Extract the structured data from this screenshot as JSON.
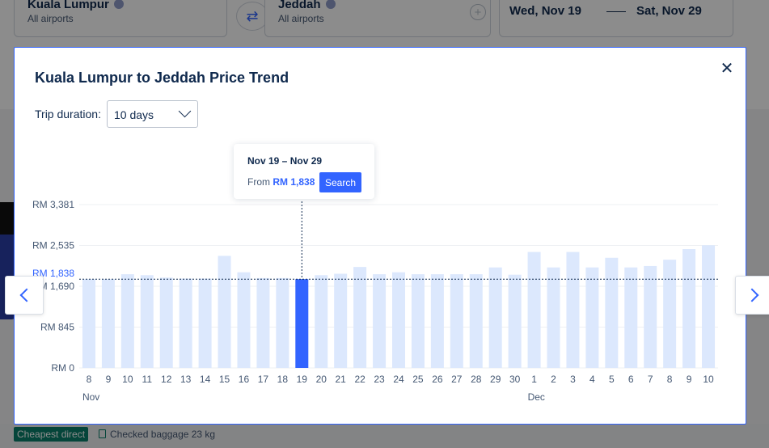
{
  "background": {
    "origin_city": "Kuala Lumpur",
    "origin_sub": "All airports",
    "dest_city": "Jeddah",
    "dest_sub": "All airports",
    "depart_date": "Wed, Nov 19",
    "return_date": "Sat, Nov 29",
    "badge": "Cheapest direct",
    "baggage": "Checked baggage 23 kg"
  },
  "modal": {
    "title": "Kuala Lumpur to Jeddah Price Trend",
    "close_icon": "close-icon",
    "duration_label": "Trip duration:",
    "duration_value": "10 days"
  },
  "tooltip": {
    "dates": "Nov 19 – Nov 29",
    "from_label": "From",
    "price": "RM 1,838",
    "search_label": "Search"
  },
  "colors": {
    "accent": "#3264ff",
    "bar": "#dce8fd",
    "bar_selected": "#3264ff",
    "text": "#0f294d",
    "muted": "#455873"
  },
  "chart_data": {
    "type": "bar",
    "ylim": [
      0,
      3381
    ],
    "y_ticks": [
      {
        "value": 0,
        "label": "RM 0"
      },
      {
        "value": 845,
        "label": "RM 845"
      },
      {
        "value": 1690,
        "label": "RM 1,690"
      },
      {
        "value": 2535,
        "label": "RM 2,535"
      },
      {
        "value": 3381,
        "label": "RM 3,381"
      }
    ],
    "reference_line": {
      "value": 1838,
      "label": "RM 1,838"
    },
    "selected_category": "19",
    "categories": [
      "8",
      "9",
      "10",
      "11",
      "12",
      "13",
      "14",
      "15",
      "16",
      "17",
      "18",
      "19",
      "20",
      "21",
      "22",
      "23",
      "24",
      "25",
      "26",
      "27",
      "28",
      "29",
      "30",
      "1",
      "2",
      "3",
      "4",
      "5",
      "6",
      "7",
      "8",
      "9",
      "10"
    ],
    "month_labels": [
      {
        "label": "Nov",
        "category_index": 0
      },
      {
        "label": "Dec",
        "category_index": 23
      }
    ],
    "values": [
      1840,
      1840,
      1940,
      1920,
      1870,
      1850,
      1850,
      2320,
      1980,
      1860,
      1860,
      1838,
      1920,
      1950,
      2090,
      1940,
      1980,
      1940,
      1940,
      1940,
      1940,
      2080,
      1930,
      2400,
      2080,
      2400,
      2080,
      2280,
      2080,
      2110,
      2240,
      2460,
      2540
    ],
    "xlabel": "",
    "ylabel": "",
    "title": ""
  },
  "icons": {
    "prev": "chevron-left-icon",
    "next": "chevron-right-icon",
    "dropdown": "chevron-down-icon"
  }
}
